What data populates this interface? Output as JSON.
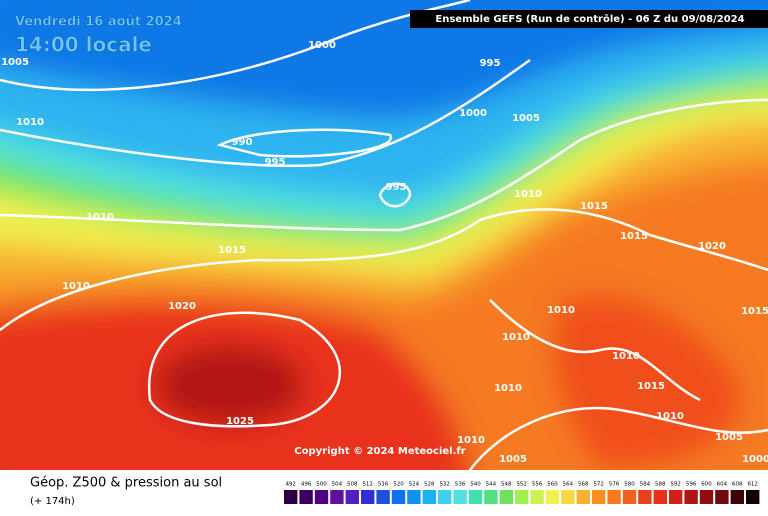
{
  "header": {
    "date": "Vendredi 16 août 2024",
    "time": "14:00 locale",
    "run": "Ensemble GEFS  (Run de contrôle)  -  06 Z du 09/08/2024"
  },
  "isobar_labels": [
    1005,
    1000,
    995,
    1010,
    990,
    995,
    1000,
    1005,
    995,
    1010,
    1015,
    1010,
    1015,
    1015,
    1020,
    1010,
    1020,
    1010,
    1010,
    1015,
    1010,
    1010,
    1015,
    1025,
    1010,
    1010,
    1005,
    1000,
    1005
  ],
  "copyright": "Copyright © 2024 Meteociel.fr",
  "footer": {
    "title": "Géop. Z500 & pression au sol",
    "lead": "(+ 174h)"
  },
  "legend": {
    "values": [
      492,
      496,
      500,
      504,
      508,
      512,
      516,
      520,
      524,
      528,
      532,
      536,
      540,
      544,
      548,
      552,
      556,
      560,
      564,
      568,
      572,
      576,
      580,
      584,
      588,
      592,
      596,
      600,
      604,
      608,
      612
    ]
  }
}
